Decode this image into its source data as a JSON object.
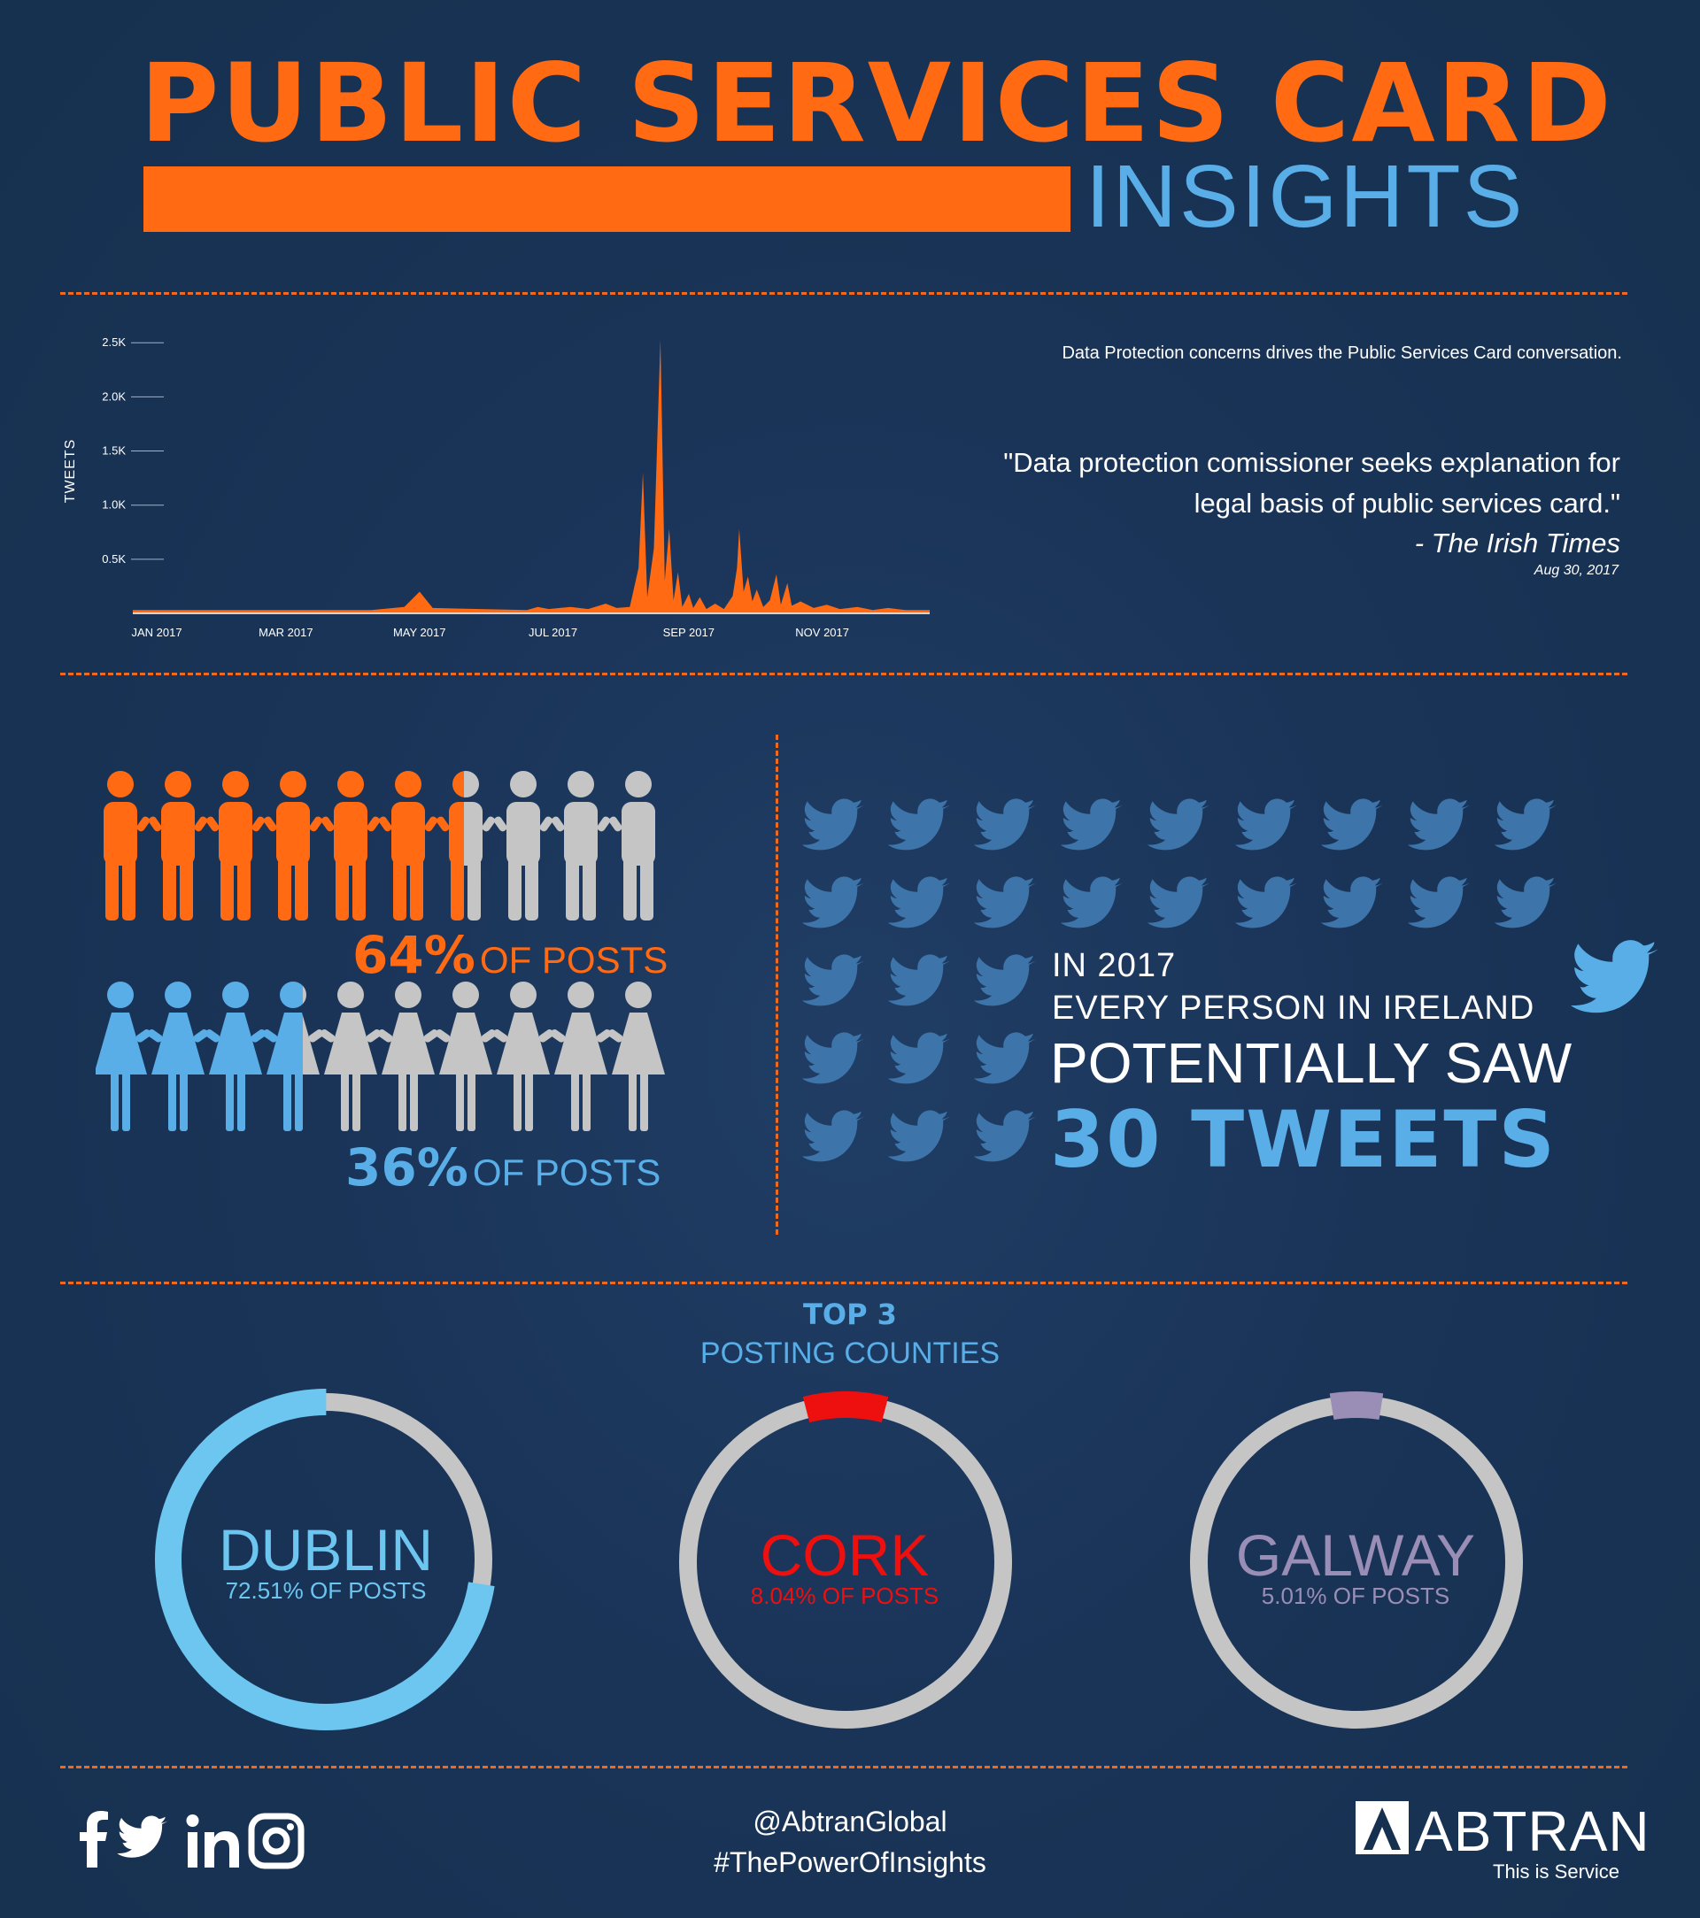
{
  "header": {
    "title": "PUBLIC SERVICES CARD",
    "subtitle": "INSIGHTS"
  },
  "chart_data": {
    "type": "area",
    "ylabel": "TWEETS",
    "yticks": [
      "0.5K",
      "1.0K",
      "1.5K",
      "2.0K",
      "2.5K"
    ],
    "ytick_values": [
      500,
      1000,
      1500,
      2000,
      2500
    ],
    "xticks": [
      "JAN 2017",
      "MAR 2017",
      "MAY 2017",
      "JUL 2017",
      "SEP 2017",
      "NOV 2017"
    ],
    "ylim": [
      0,
      2600
    ],
    "grid": false,
    "series": [
      {
        "color": "#ff6a13",
        "points": [
          [
            "2017-01-01",
            30
          ],
          [
            "2017-04-20",
            30
          ],
          [
            "2017-05-05",
            60
          ],
          [
            "2017-05-12",
            200
          ],
          [
            "2017-05-18",
            50
          ],
          [
            "2017-06-30",
            30
          ],
          [
            "2017-07-05",
            60
          ],
          [
            "2017-07-10",
            40
          ],
          [
            "2017-07-20",
            60
          ],
          [
            "2017-07-28",
            40
          ],
          [
            "2017-08-05",
            90
          ],
          [
            "2017-08-10",
            50
          ],
          [
            "2017-08-16",
            60
          ],
          [
            "2017-08-20",
            420
          ],
          [
            "2017-08-22",
            1300
          ],
          [
            "2017-08-24",
            150
          ],
          [
            "2017-08-27",
            600
          ],
          [
            "2017-08-30",
            2530
          ],
          [
            "2017-09-01",
            300
          ],
          [
            "2017-09-03",
            780
          ],
          [
            "2017-09-05",
            120
          ],
          [
            "2017-09-07",
            380
          ],
          [
            "2017-09-09",
            60
          ],
          [
            "2017-09-12",
            180
          ],
          [
            "2017-09-14",
            50
          ],
          [
            "2017-09-17",
            150
          ],
          [
            "2017-09-20",
            40
          ],
          [
            "2017-09-24",
            90
          ],
          [
            "2017-09-28",
            40
          ],
          [
            "2017-10-02",
            160
          ],
          [
            "2017-10-04",
            420
          ],
          [
            "2017-10-05",
            780
          ],
          [
            "2017-10-07",
            200
          ],
          [
            "2017-10-09",
            340
          ],
          [
            "2017-10-11",
            110
          ],
          [
            "2017-10-13",
            220
          ],
          [
            "2017-10-16",
            60
          ],
          [
            "2017-10-19",
            120
          ],
          [
            "2017-10-22",
            360
          ],
          [
            "2017-10-24",
            80
          ],
          [
            "2017-10-27",
            280
          ],
          [
            "2017-10-29",
            70
          ],
          [
            "2017-11-02",
            110
          ],
          [
            "2017-11-08",
            50
          ],
          [
            "2017-11-14",
            80
          ],
          [
            "2017-11-20",
            40
          ],
          [
            "2017-11-28",
            60
          ],
          [
            "2017-12-05",
            30
          ],
          [
            "2017-12-12",
            50
          ],
          [
            "2017-12-20",
            30
          ],
          [
            "2017-12-31",
            30
          ]
        ]
      }
    ]
  },
  "insight": {
    "statement": "Data Protection concerns drives the Public Services Card conversation.",
    "quote": "\"Data protection comissioner seeks explanation for legal basis of public services card.\"",
    "source": "- The Irish Times",
    "date": "Aug 30, 2017"
  },
  "gender": {
    "male": {
      "percent": "64%",
      "label": "OF POSTS",
      "share": 0.64,
      "color": "#ff6a13"
    },
    "female": {
      "percent": "36%",
      "label": "OF POSTS",
      "share": 0.36,
      "color": "#5aaee8"
    },
    "grey": "#c5c5c5"
  },
  "tweets": {
    "line1": "IN 2017",
    "line2": "EVERY PERSON IN IRELAND",
    "line3": "POTENTIALLY SAW",
    "line4": "30 TWEETS",
    "icon": "twitter-bird-icon",
    "icon_color": "#3d74aa",
    "accent_color": "#5aaee8"
  },
  "counties": {
    "heading": "TOP 3",
    "subheading": "POSTING COUNTIES",
    "items": [
      {
        "name": "DUBLIN",
        "share_text": "72.51% OF POSTS",
        "share": 0.7251,
        "color": "#6cc6f0"
      },
      {
        "name": "CORK",
        "share_text": "8.04% OF POSTS",
        "share": 0.0804,
        "color": "#ee0f0f"
      },
      {
        "name": "GALWAY",
        "share_text": "5.01% OF POSTS",
        "share": 0.0501,
        "color": "#9a8eb6"
      }
    ],
    "ring_grey": "#c5c5c5"
  },
  "footer": {
    "social_icons": [
      "facebook-icon",
      "twitter-icon",
      "linkedin-icon",
      "instagram-icon"
    ],
    "handle": "@AbtranGlobal",
    "hashtag": "#ThePowerOfInsights",
    "brand": "ABTRAN",
    "tagline": "This is Service"
  }
}
